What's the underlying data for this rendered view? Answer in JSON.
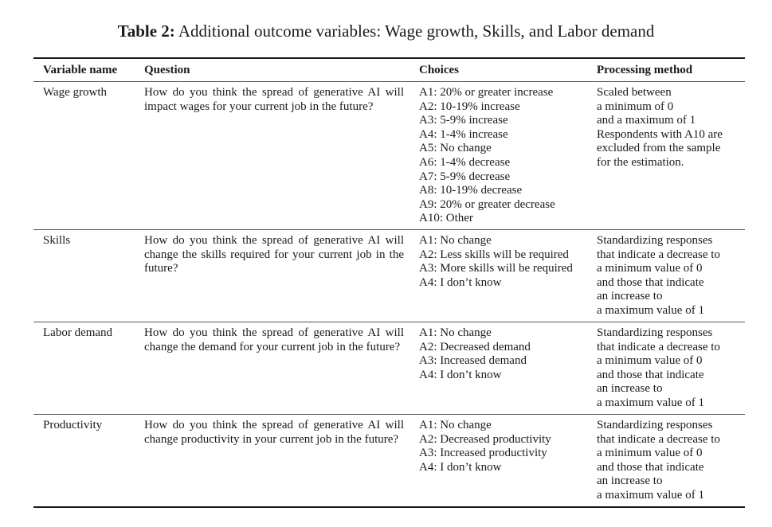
{
  "caption": {
    "label": "Table 2:",
    "text": "Additional outcome variables: Wage growth, Skills, and Labor demand"
  },
  "headers": {
    "variable": "Variable name",
    "question": "Question",
    "choices": "Choices",
    "processing": "Processing method"
  },
  "rows": [
    {
      "variable": "Wage growth",
      "question": "How do you think the spread of generative AI will impact wages for your current job in the future?",
      "choices": [
        "A1: 20% or greater increase",
        "A2: 10-19% increase",
        "A3: 5-9% increase",
        "A4: 1-4% increase",
        "A5: No change",
        "A6: 1-4% decrease",
        "A7: 5-9% decrease",
        "A8: 10-19% decrease",
        "A9: 20% or greater decrease",
        "A10: Other"
      ],
      "processing": [
        "Scaled between",
        "a minimum of 0",
        "and a maximum of 1",
        "Respondents with A10 are",
        "excluded from the sample",
        "for the estimation."
      ]
    },
    {
      "variable": "Skills",
      "question": "How do you think the spread of generative AI will change the skills required for your current job in the future?",
      "choices": [
        "A1: No change",
        "A2: Less skills will be required",
        "A3: More skills will be required",
        "A4: I don’t know"
      ],
      "processing": [
        "Standardizing responses",
        "that indicate a decrease to",
        "a minimum value of 0",
        "and those that indicate",
        "an increase to",
        "a maximum value of 1"
      ]
    },
    {
      "variable": "Labor demand",
      "question": "How do you think the spread of generative AI will change the demand for your current job in the future?",
      "choices": [
        "A1: No change",
        "A2: Decreased demand",
        "A3: Increased demand",
        "A4: I don’t know"
      ],
      "processing": [
        "Standardizing responses",
        "that indicate a decrease to",
        "a minimum value of 0",
        "and those that indicate",
        "an increase to",
        "a maximum value of 1"
      ]
    },
    {
      "variable": "Productivity",
      "question": "How do you think the spread of generative AI will change productivity in your current job in the future?",
      "choices": [
        "A1: No change",
        "A2: Decreased productivity",
        "A3: Increased productivity",
        "A4: I don’t know"
      ],
      "processing": [
        "Standardizing responses",
        "that indicate a decrease to",
        "a minimum value of 0",
        "and those that indicate",
        "an increase to",
        "a maximum value of 1"
      ]
    }
  ]
}
